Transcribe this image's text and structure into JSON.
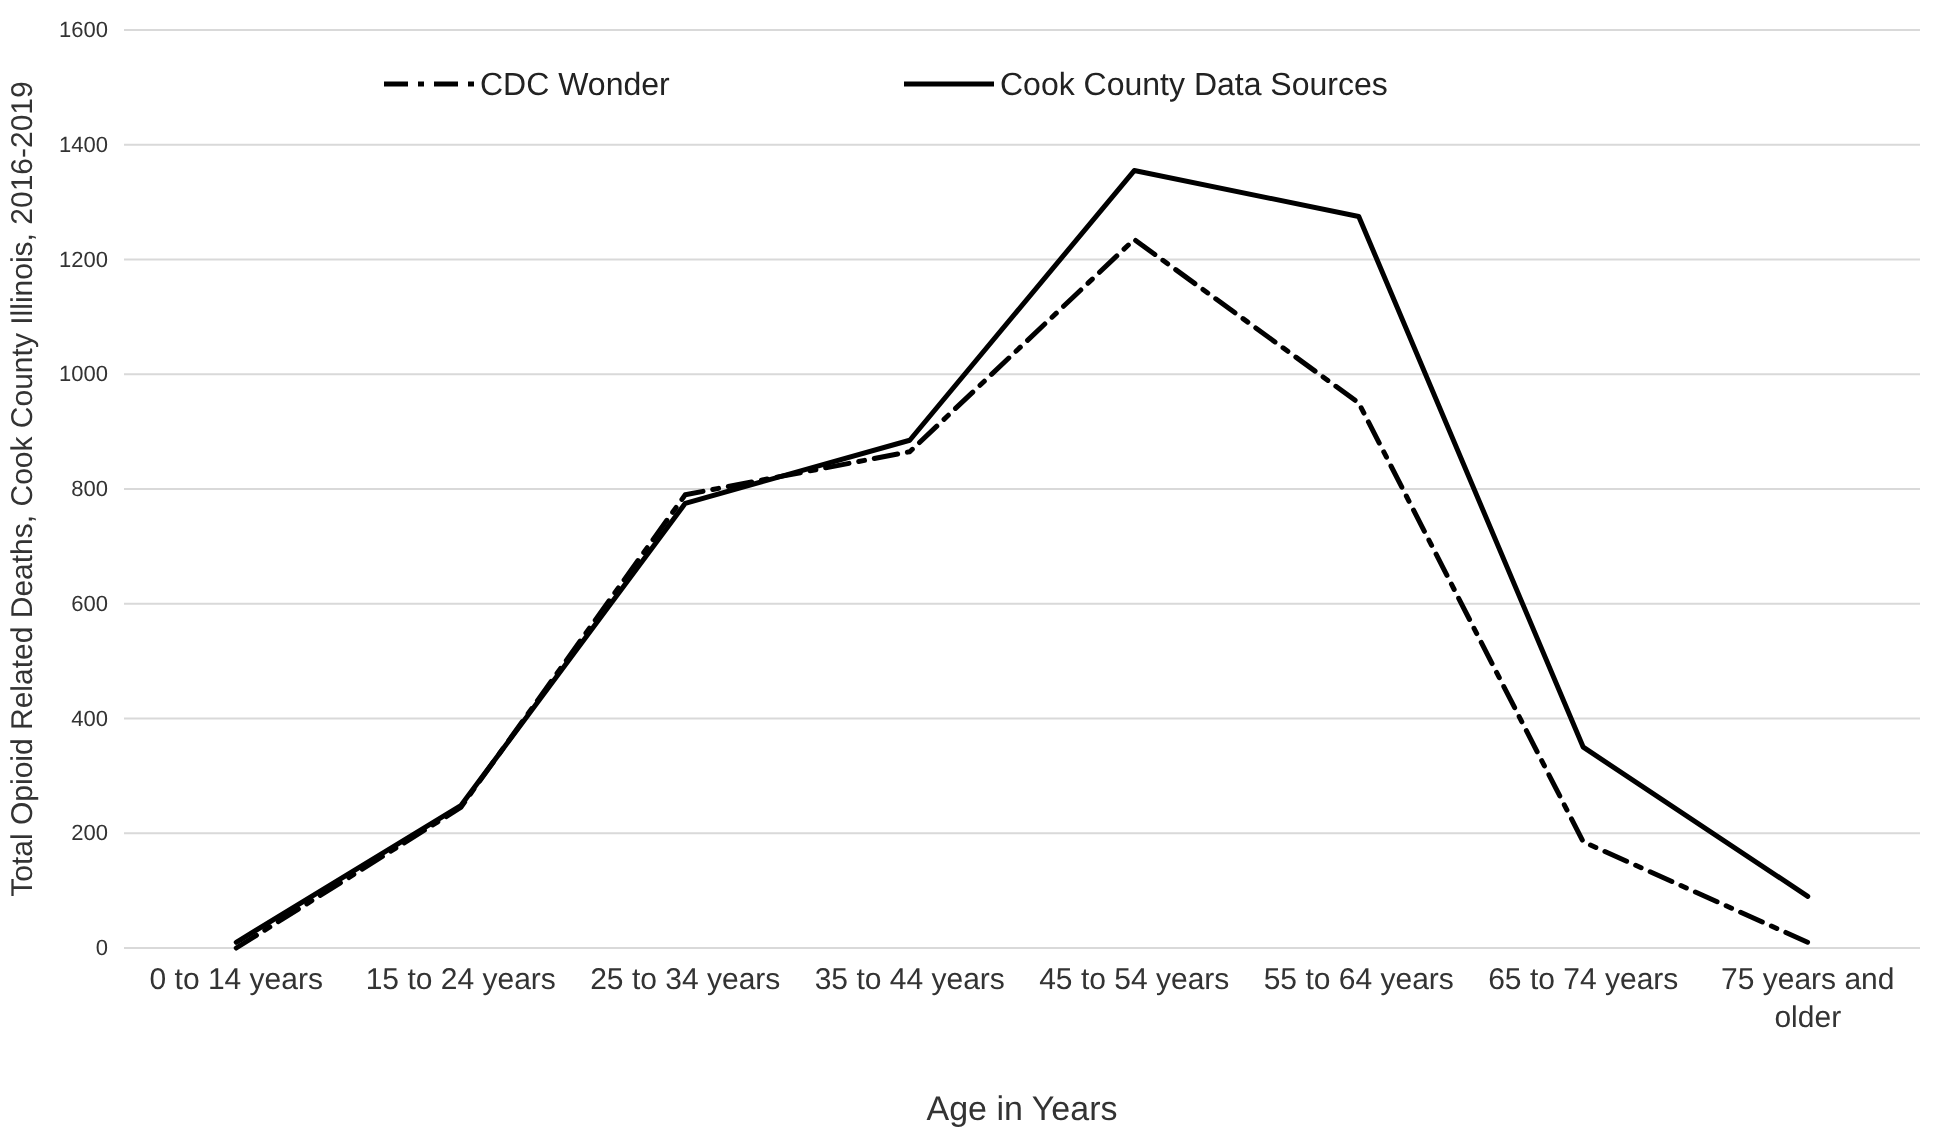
{
  "chart_data": {
    "type": "line",
    "xlabel": "Age in Years",
    "ylabel": "Total Opioid Related Deaths, Cook County Illinois, 2016-2019",
    "categories": [
      "0 to 14 years",
      "15 to 24 years",
      "25 to 34 years",
      "35 to 44 years",
      "45 to 54 years",
      "55 to 64 years",
      "65 to 74 years",
      "75 years and older"
    ],
    "series": [
      {
        "name": "CDC Wonder",
        "color": "#000000",
        "line_style": "dashed",
        "values": [
          0,
          245,
          790,
          865,
          1235,
          950,
          185,
          10
        ]
      },
      {
        "name": "Cook County Data Sources",
        "color": "#000000",
        "line_style": "solid",
        "values": [
          10,
          248,
          775,
          885,
          1355,
          1275,
          350,
          90
        ]
      }
    ],
    "ylim": [
      0,
      1600
    ],
    "yticks": [
      0,
      200,
      400,
      600,
      800,
      1000,
      1200,
      1400,
      1600
    ],
    "grid": "y",
    "legend": "top left",
    "marker": "none"
  }
}
